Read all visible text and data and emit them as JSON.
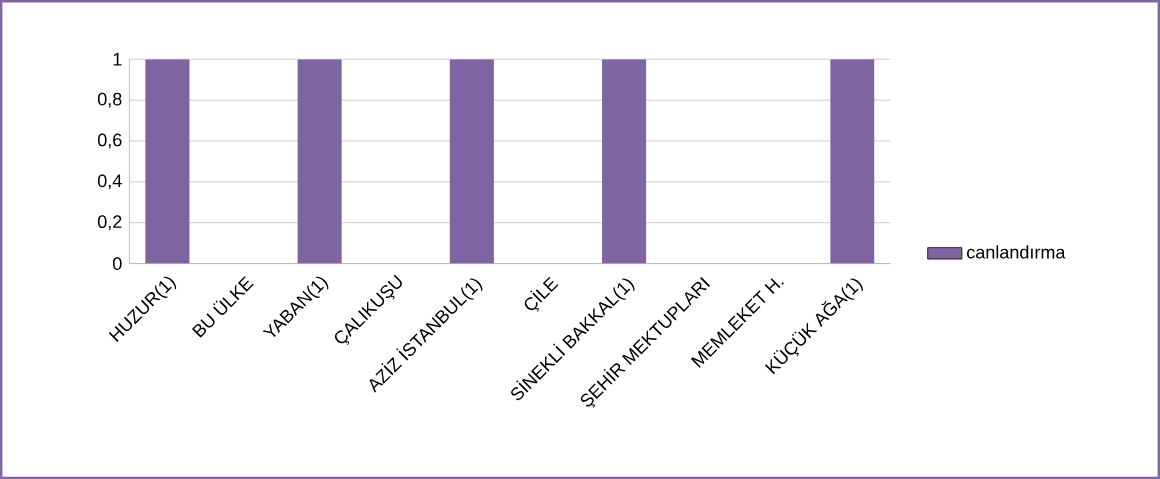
{
  "chart_data": {
    "type": "bar",
    "categories": [
      "HUZUR(1)",
      "BU ÜLKE",
      "YABAN(1)",
      "ÇALIKUŞU",
      "AZİZ İSTANBUL(1)",
      "ÇİLE",
      "SİNEKLİ BAKKAL(1)",
      "ŞEHİR MEKTUPLARI",
      "MEMLEKET H.",
      "KÜÇÜK AĞA(1)"
    ],
    "series": [
      {
        "name": "canlandırma",
        "color": "#8064a2",
        "values": [
          1,
          0,
          1,
          0,
          1,
          0,
          1,
          0,
          0,
          1
        ]
      }
    ],
    "ylim": [
      0,
      1
    ],
    "yticks": [
      0,
      {
        "value": 0.2,
        "label": "0,2"
      },
      {
        "value": 0.4,
        "label": "0,4"
      },
      {
        "value": 0.6,
        "label": "0,6"
      },
      {
        "value": 0.8,
        "label": "0,8"
      },
      1
    ],
    "grid": "y",
    "legend": "right"
  }
}
